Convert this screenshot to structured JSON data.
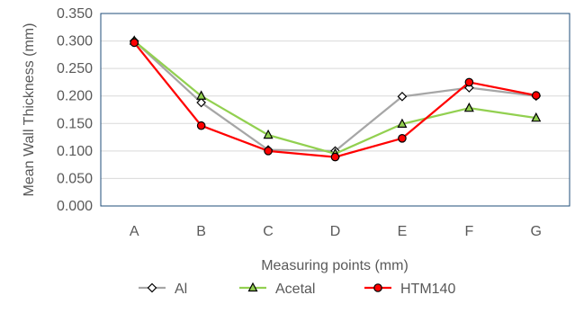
{
  "chart_data": {
    "type": "line",
    "xlabel": "Measuring points (mm)",
    "ylabel": "Mean Wall Thickness (mm)",
    "ylim": [
      0,
      0.35
    ],
    "yticks": [
      "0.000",
      "0.050",
      "0.100",
      "0.150",
      "0.200",
      "0.250",
      "0.300",
      "0.350"
    ],
    "categories": [
      "A",
      "B",
      "C",
      "D",
      "E",
      "F",
      "G"
    ],
    "grid": true,
    "legend_position": "bottom",
    "series": [
      {
        "name": "Al",
        "color": "#a6a6a6",
        "marker": "diamond",
        "values": [
          0.3,
          0.188,
          0.102,
          0.1,
          0.199,
          0.215,
          0.2
        ]
      },
      {
        "name": "Acetal",
        "color": "#92d050",
        "marker": "triangle",
        "values": [
          0.3,
          0.2,
          0.129,
          0.095,
          0.149,
          0.178,
          0.16
        ]
      },
      {
        "name": "HTM140",
        "color": "#ff0000",
        "marker": "circle",
        "values": [
          0.297,
          0.146,
          0.1,
          0.089,
          0.123,
          0.225,
          0.201
        ]
      }
    ]
  }
}
